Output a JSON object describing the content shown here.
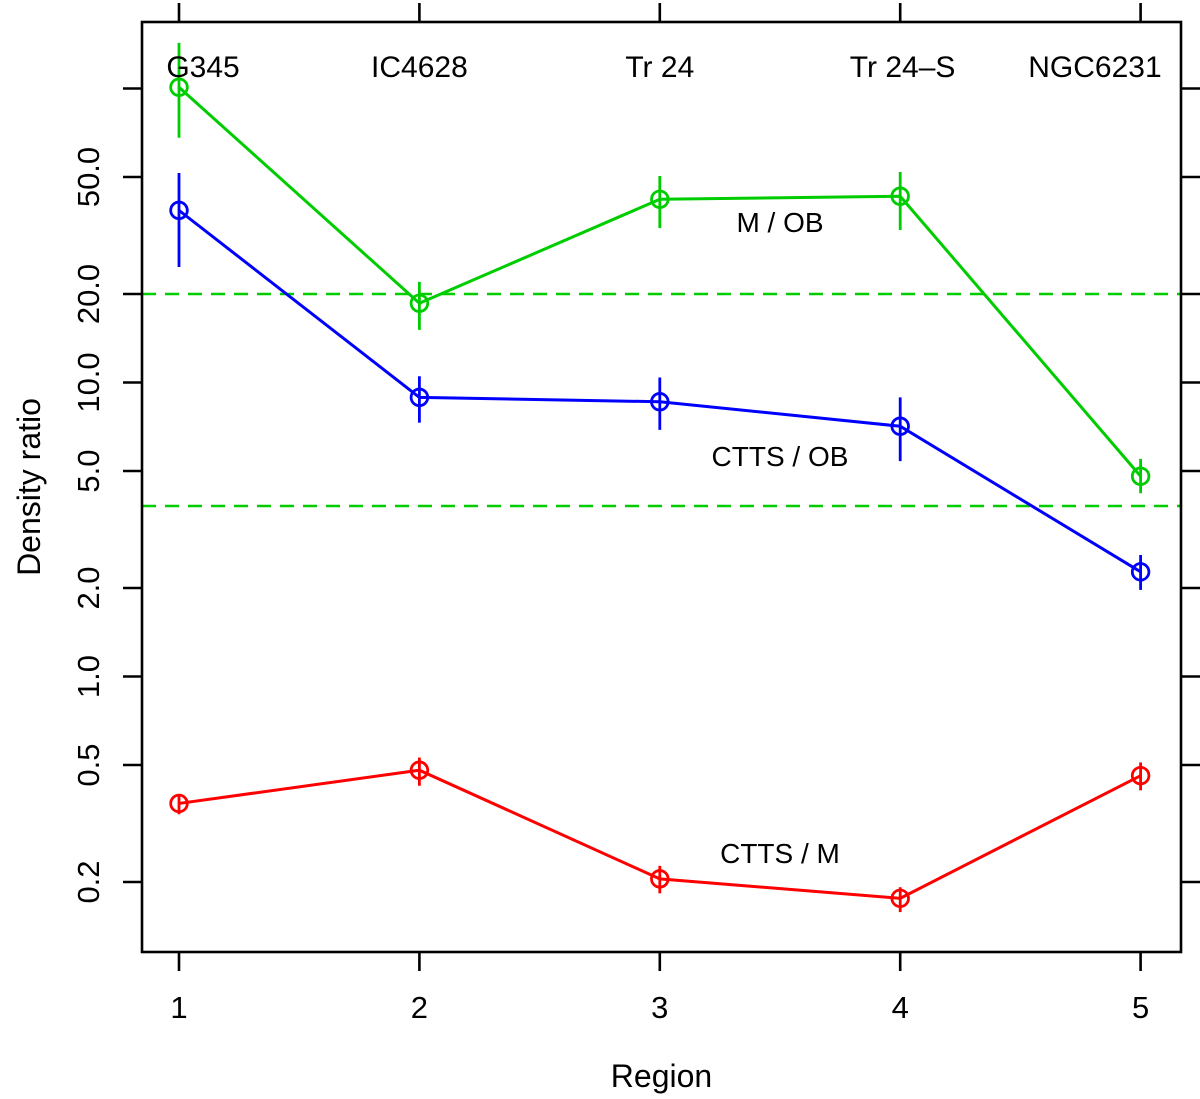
{
  "chart_data": {
    "type": "line",
    "title": "",
    "xlabel": "Region",
    "ylabel": "Density ratio",
    "x": [
      1,
      2,
      3,
      4,
      5
    ],
    "x_tick_labels": [
      "1",
      "2",
      "3",
      "4",
      "5"
    ],
    "y_scale": "log",
    "ylim": [
      0.116,
      168
    ],
    "xlim": [
      0.85,
      5.17
    ],
    "grid": false,
    "legend_position": "inline-labels",
    "y_ticks": [
      {
        "value": 100,
        "label": ""
      },
      {
        "value": 50,
        "label": "50.0"
      },
      {
        "value": 20,
        "label": "20.0"
      },
      {
        "value": 10,
        "label": "10.0"
      },
      {
        "value": 5,
        "label": "5.0"
      },
      {
        "value": 2,
        "label": "2.0"
      },
      {
        "value": 1,
        "label": "1.0"
      },
      {
        "value": 0.5,
        "label": "0.5"
      },
      {
        "value": 0.2,
        "label": "0.2"
      }
    ],
    "region_labels": [
      {
        "text": "G345",
        "x": 1.1
      },
      {
        "text": "IC4628",
        "x": 2.0
      },
      {
        "text": "Tr 24",
        "x": 3.0
      },
      {
        "text": "Tr 24–S",
        "x": 4.01
      },
      {
        "text": "NGC6231",
        "x": 4.81
      }
    ],
    "reference_lines": {
      "style": "dashed",
      "color": "#00cd00",
      "values": [
        20.0,
        3.8
      ]
    },
    "series": [
      {
        "name": "M / OB",
        "color": "#00cd00",
        "values": [
          101,
          18.6,
          42.0,
          43.0,
          4.8
        ],
        "err_lo": [
          68,
          15.1,
          33.5,
          33.0,
          4.2
        ],
        "err_hi": [
          143,
          22.0,
          50.4,
          52.0,
          5.5
        ],
        "label_at": {
          "x": 3.5,
          "y": 35
        }
      },
      {
        "name": "CTTS / OB",
        "color": "#0000ff",
        "values": [
          38.5,
          8.9,
          8.6,
          7.1,
          2.27
        ],
        "err_lo": [
          24.7,
          7.3,
          6.9,
          5.4,
          1.97
        ],
        "err_hi": [
          51.6,
          10.5,
          10.4,
          8.9,
          2.59
        ],
        "label_at": {
          "x": 3.5,
          "y": 5.6
        }
      },
      {
        "name": "CTTS / M",
        "color": "#ff0000",
        "values": [
          0.37,
          0.48,
          0.205,
          0.176,
          0.46
        ],
        "err_lo": [
          0.34,
          0.425,
          0.183,
          0.158,
          0.41
        ],
        "err_hi": [
          0.395,
          0.53,
          0.227,
          0.192,
          0.51
        ],
        "label_at": {
          "x": 3.5,
          "y": 0.25
        }
      }
    ]
  },
  "colors": {
    "axis": "#000000",
    "background": "#ffffff"
  }
}
